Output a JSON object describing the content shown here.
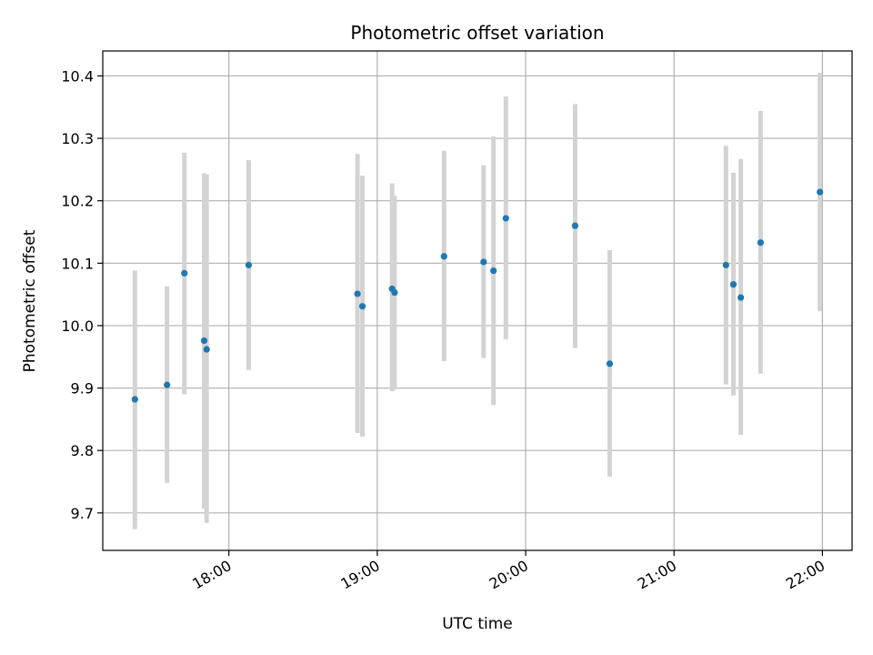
{
  "chart_data": {
    "type": "scatter",
    "title": "Photometric offset variation",
    "xlabel": "UTC time",
    "ylabel": "Photometric offset",
    "x_axis": {
      "kind": "time",
      "range": [
        "17:09",
        "22:12"
      ],
      "ticks": [
        "18:00",
        "19:00",
        "20:00",
        "21:00",
        "22:00"
      ]
    },
    "y_axis": {
      "range": [
        9.64,
        10.44
      ],
      "ticks": [
        9.7,
        9.8,
        9.9,
        10.0,
        10.1,
        10.2,
        10.3,
        10.4
      ]
    },
    "grid": true,
    "colors": {
      "point": "#1f77b4",
      "errorbar": "#d3d3d3",
      "grid": "#b0b0b0"
    },
    "points": [
      {
        "x": "17:22",
        "y": 9.882,
        "ylow": 9.674,
        "yhigh": 10.088
      },
      {
        "x": "17:35",
        "y": 9.905,
        "ylow": 9.748,
        "yhigh": 10.063
      },
      {
        "x": "17:42",
        "y": 10.084,
        "ylow": 9.89,
        "yhigh": 10.277
      },
      {
        "x": "17:50",
        "y": 9.976,
        "ylow": 9.707,
        "yhigh": 10.244
      },
      {
        "x": "17:51",
        "y": 9.962,
        "ylow": 9.684,
        "yhigh": 10.242
      },
      {
        "x": "18:08",
        "y": 10.097,
        "ylow": 9.929,
        "yhigh": 10.265
      },
      {
        "x": "18:52",
        "y": 10.051,
        "ylow": 9.828,
        "yhigh": 10.275
      },
      {
        "x": "18:54",
        "y": 10.031,
        "ylow": 9.822,
        "yhigh": 10.24
      },
      {
        "x": "19:06",
        "y": 10.059,
        "ylow": 9.895,
        "yhigh": 10.228
      },
      {
        "x": "19:07",
        "y": 10.053,
        "ylow": 9.898,
        "yhigh": 10.208
      },
      {
        "x": "19:27",
        "y": 10.111,
        "ylow": 9.943,
        "yhigh": 10.28
      },
      {
        "x": "19:43",
        "y": 10.102,
        "ylow": 9.948,
        "yhigh": 10.257
      },
      {
        "x": "19:47",
        "y": 10.088,
        "ylow": 9.873,
        "yhigh": 10.303
      },
      {
        "x": "19:52",
        "y": 10.172,
        "ylow": 9.978,
        "yhigh": 10.367
      },
      {
        "x": "20:20",
        "y": 10.16,
        "ylow": 9.964,
        "yhigh": 10.355
      },
      {
        "x": "20:34",
        "y": 9.939,
        "ylow": 9.758,
        "yhigh": 10.121
      },
      {
        "x": "21:21",
        "y": 10.097,
        "ylow": 9.906,
        "yhigh": 10.288
      },
      {
        "x": "21:24",
        "y": 10.066,
        "ylow": 9.888,
        "yhigh": 10.245
      },
      {
        "x": "21:27",
        "y": 10.045,
        "ylow": 9.825,
        "yhigh": 10.267
      },
      {
        "x": "21:35",
        "y": 10.133,
        "ylow": 9.923,
        "yhigh": 10.344
      },
      {
        "x": "21:59",
        "y": 10.214,
        "ylow": 10.023,
        "yhigh": 10.405
      }
    ]
  }
}
